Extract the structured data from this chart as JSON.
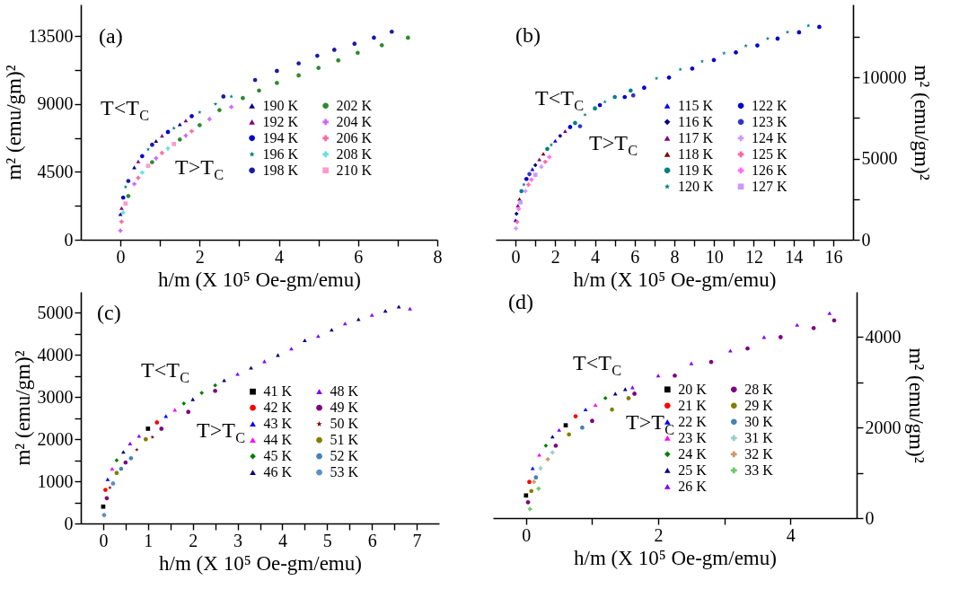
{
  "chart_data": [
    {
      "type": "scatter",
      "xlabel": "h/m (X 10⁵ Oe-gm/emu)",
      "ylabel": "m² (emu/gm)²",
      "annotations": [
        "(a)",
        "T<T$_{C}$",
        "T>T$_{C}$"
      ],
      "legend": "right",
      "xlim": [
        -1,
        8
      ],
      "xticks": [
        0,
        {
          "value": 1,
          "label": null
        },
        2,
        {
          "value": 3,
          "label": null
        },
        4,
        {
          "value": 5,
          "label": null
        },
        6,
        {
          "value": 7,
          "label": null
        },
        8
      ],
      "ylim": [
        0,
        15600
      ],
      "yticks": [
        0,
        {
          "value": 2250,
          "label": null
        },
        4500,
        {
          "value": 6750,
          "label": null
        },
        9000,
        {
          "value": 11250,
          "label": null
        },
        13500
      ],
      "series": [
        {
          "name": "190 K",
          "color": "#00008b",
          "marker": "triangle",
          "x": [
            0.0,
            0.35,
            0.9,
            1.5
          ],
          "values": [
            1700,
            4800,
            6550,
            7650
          ]
        },
        {
          "name": "192 K",
          "color": "#800080",
          "marker": "triangle",
          "x": [
            0.03,
            0.45,
            1.05,
            1.65
          ],
          "values": [
            2100,
            5200,
            6900,
            7900
          ]
        },
        {
          "name": "194 K",
          "color": "#0000cd",
          "marker": "circle",
          "x": [
            0.07,
            0.55,
            1.2,
            1.8
          ],
          "values": [
            2800,
            5550,
            7150,
            8200
          ]
        },
        {
          "name": "196 K",
          "color": "#008080",
          "marker": "star",
          "x": [
            0.13,
            0.7,
            1.35,
            2.0,
            2.4,
            2.8
          ],
          "values": [
            3500,
            6000,
            7400,
            8450,
            9000,
            9500
          ]
        },
        {
          "name": "198 K",
          "color": "#1a1aa6",
          "marker": "circle",
          "x": [
            0.2,
            0.8,
            2.6,
            3.4,
            3.95,
            4.5,
            4.97,
            5.4,
            5.91,
            6.4,
            6.85
          ],
          "values": [
            3900,
            6300,
            9500,
            10600,
            11200,
            11700,
            12200,
            12600,
            13000,
            13400,
            13800
          ]
        },
        {
          "name": "202 K",
          "color": "#2e8b2e",
          "marker": "circle",
          "x": [
            0.2,
            0.8,
            1.5,
            2.0,
            2.5,
            3.09,
            3.5,
            3.95,
            4.5,
            5.0,
            5.5,
            5.99,
            6.6,
            7.26
          ],
          "values": [
            2900,
            5150,
            6650,
            7600,
            8600,
            9400,
            9900,
            10400,
            10900,
            11400,
            11900,
            12400,
            12900,
            13400
          ]
        },
        {
          "name": "204 K",
          "color": "#cc66ff",
          "marker": "cross",
          "x": [
            0.0,
            0.35,
            0.9,
            1.65,
            2.25,
            2.8
          ],
          "values": [
            600,
            3700,
            5400,
            6900,
            8000,
            8800
          ]
        },
        {
          "name": "206 K",
          "color": "#ff6699",
          "marker": "cross",
          "x": [
            0.03,
            0.45,
            1.05,
            1.8
          ],
          "values": [
            1200,
            4100,
            5750,
            7200
          ]
        },
        {
          "name": "208 K",
          "color": "#66e0e0",
          "marker": "cross",
          "x": [
            0.07,
            0.55,
            1.2
          ],
          "values": [
            1800,
            4450,
            6050
          ]
        },
        {
          "name": "210 K",
          "color": "#ff99cc",
          "marker": "square",
          "x": [
            0.13,
            0.7,
            1.35
          ],
          "values": [
            2400,
            4900,
            6350
          ]
        }
      ]
    },
    {
      "type": "scatter",
      "xlabel": "h/m (X 10⁵ Oe-gm/emu)",
      "y2label": "m² (emu/gm)²",
      "annotations": [
        "(b)",
        "T<T$_{C}$",
        "T>T$_{C}$"
      ],
      "legend": "right",
      "xlim": [
        -1,
        17
      ],
      "xticks": [
        0,
        {
          "value": 1,
          "label": null
        },
        2,
        {
          "value": 3,
          "label": null
        },
        4,
        {
          "value": 5,
          "label": null
        },
        6,
        {
          "value": 7,
          "label": null
        },
        8,
        {
          "value": 9,
          "label": null
        },
        10,
        {
          "value": 11,
          "label": null
        },
        12,
        {
          "value": 13,
          "label": null
        },
        14,
        {
          "value": 15,
          "label": null
        },
        16
      ],
      "y2lim": [
        0,
        14500
      ],
      "y2ticks": [
        0,
        {
          "value": 2500,
          "label": null
        },
        5000,
        {
          "value": 7500,
          "label": null
        },
        10000,
        {
          "value": 12500,
          "label": null
        }
      ],
      "series": [
        {
          "name": "115 K",
          "color": "#0000ff",
          "marker": "triangle",
          "axis": "y2",
          "x": [
            0.0,
            0.85,
            2.0
          ],
          "values": [
            1200,
            4350,
            6100
          ]
        },
        {
          "name": "116 K",
          "color": "#000080",
          "marker": "diamond",
          "axis": "y2",
          "x": [
            0.05,
            1.0,
            2.25
          ],
          "values": [
            1600,
            4600,
            6400
          ]
        },
        {
          "name": "117 K",
          "color": "#800080",
          "marker": "triangle",
          "axis": "y2",
          "x": [
            0.12,
            1.2,
            2.5
          ],
          "values": [
            2100,
            4950,
            6700
          ]
        },
        {
          "name": "118 K",
          "color": "#800000",
          "marker": "triangle",
          "axis": "y2",
          "x": [
            0.2,
            1.4
          ],
          "values": [
            2500,
            5300
          ]
        },
        {
          "name": "119 K",
          "color": "#008080",
          "marker": "circle",
          "axis": "y2",
          "x": [
            0.3,
            1.6,
            3.0,
            4.0,
            5.0,
            5.8
          ],
          "values": [
            3000,
            5600,
            7200,
            8100,
            8800,
            9200
          ]
        },
        {
          "name": "120 K",
          "color": "#008080",
          "marker": "star",
          "axis": "y2",
          "x": [
            0.42,
            1.8,
            3.5,
            4.5,
            7.1,
            8.3,
            9.4,
            10.5,
            11.6,
            12.7,
            13.7,
            14.75
          ],
          "values": [
            3400,
            5850,
            7700,
            8500,
            9950,
            10500,
            11000,
            11500,
            11950,
            12400,
            12800,
            13200
          ]
        },
        {
          "name": "122 K",
          "color": "#0000cd",
          "marker": "circle",
          "axis": "y2",
          "x": [
            0.55,
            2.75,
            4.25,
            5.5,
            6.48,
            7.73,
            8.9,
            9.99,
            11.1,
            12.18,
            13.2,
            14.28,
            15.3
          ],
          "values": [
            3750,
            6950,
            8300,
            8800,
            9370,
            10000,
            10550,
            11080,
            11550,
            11980,
            12400,
            12790,
            13120
          ]
        },
        {
          "name": "123 K",
          "color": "#3333cc",
          "marker": "circle",
          "axis": "y2",
          "x": [
            0.7,
            3.25,
            5.93
          ],
          "values": [
            4050,
            7000,
            8900
          ]
        },
        {
          "name": "124 K",
          "color": "#cc99ff",
          "marker": "cross",
          "axis": "y2",
          "x": [
            0.02,
            0.5,
            1.3
          ],
          "values": [
            700,
            3000,
            4500
          ]
        },
        {
          "name": "125 K",
          "color": "#ff6699",
          "marker": "cross",
          "axis": "y2",
          "x": [
            0.08,
            0.65,
            1.5
          ],
          "values": [
            1100,
            3400,
            4800
          ]
        },
        {
          "name": "126 K",
          "color": "#ff66ff",
          "marker": "cross",
          "axis": "y2",
          "x": [
            0.16,
            0.8,
            1.7
          ],
          "values": [
            1900,
            3700,
            5100
          ]
        },
        {
          "name": "127 K",
          "color": "#cc99ff",
          "marker": "square",
          "axis": "y2",
          "x": [
            0.25,
            1.0
          ],
          "values": [
            2300,
            4000
          ]
        }
      ]
    },
    {
      "type": "scatter",
      "xlabel": "h/m (X 10⁵ Oe-gm/emu)",
      "ylabel": "m² (emu/gm)²",
      "annotations": [
        "(c)",
        "T<T$_{C}$",
        "T>T$_{C}$"
      ],
      "legend": "right",
      "xlim": [
        -0.5,
        7.5
      ],
      "xticks": [
        0,
        {
          "value": 0.5,
          "label": null
        },
        1,
        {
          "value": 1.5,
          "label": null
        },
        2,
        {
          "value": 2.5,
          "label": null
        },
        3,
        {
          "value": 3.5,
          "label": null
        },
        4,
        {
          "value": 4.5,
          "label": null
        },
        5,
        {
          "value": 5.5,
          "label": null
        },
        6,
        {
          "value": 6.5,
          "label": null
        },
        7
      ],
      "ylim": [
        0,
        5500
      ],
      "yticks": [
        0,
        {
          "value": 500,
          "label": null
        },
        1000,
        {
          "value": 1500,
          "label": null
        },
        2000,
        {
          "value": 2500,
          "label": null
        },
        3000,
        {
          "value": 3500,
          "label": null
        },
        4000,
        {
          "value": 4500,
          "label": null
        },
        5000
      ],
      "series": [
        {
          "name": "41 K",
          "color": "#000000",
          "marker": "square",
          "x": [
            0.0,
            1.0
          ],
          "values": [
            400,
            2250
          ]
        },
        {
          "name": "42 K",
          "color": "#ff0000",
          "marker": "circle",
          "x": [
            0.05,
            1.2
          ],
          "values": [
            800,
            2400
          ]
        },
        {
          "name": "43 K",
          "color": "#0000ff",
          "marker": "triangle",
          "x": [
            0.1,
            1.4
          ],
          "values": [
            1050,
            2550
          ]
        },
        {
          "name": "44 K",
          "color": "#ff00ff",
          "marker": "triangle",
          "x": [
            0.2,
            1.6
          ],
          "values": [
            1300,
            2700
          ]
        },
        {
          "name": "45 K",
          "color": "#008000",
          "marker": "diamond",
          "x": [
            0.3,
            1.8,
            2.2,
            2.5
          ],
          "values": [
            1500,
            2850,
            3100,
            3280
          ]
        },
        {
          "name": "46 K",
          "color": "#000080",
          "marker": "triangle",
          "x": [
            0.45,
            2.0,
            2.7,
            3.3,
            3.9,
            4.5,
            5.1,
            5.7,
            6.3,
            6.6
          ],
          "values": [
            1700,
            2950,
            3400,
            3700,
            4000,
            4350,
            4600,
            4850,
            5050,
            5150
          ]
        },
        {
          "name": "48 K",
          "color": "#8000ff",
          "marker": "triangle",
          "x": [
            0.6,
            0.8,
            3.0,
            3.6,
            4.2,
            4.8,
            5.4,
            6.0,
            6.85
          ],
          "values": [
            1900,
            2080,
            3550,
            3850,
            4150,
            4450,
            4750,
            4950,
            5100
          ]
        },
        {
          "name": "49 K",
          "color": "#800080",
          "marker": "circle",
          "x": [
            0.08,
            0.5,
            1.3,
            1.9,
            2.5
          ],
          "values": [
            600,
            1450,
            2250,
            2650,
            3150
          ]
        },
        {
          "name": "50 K",
          "color": "#800000",
          "marker": "star",
          "x": [
            0.15,
            0.75,
            1.1
          ],
          "values": [
            850,
            1750,
            2050
          ]
        },
        {
          "name": "51 K",
          "color": "#808000",
          "marker": "circle",
          "x": [
            0.3,
            0.95
          ],
          "values": [
            1200,
            2000
          ]
        },
        {
          "name": "52 K",
          "color": "#4682b4",
          "marker": "circle",
          "x": [
            0.4,
            0.62
          ],
          "values": [
            1300,
            1550
          ]
        },
        {
          "name": "53 K",
          "color": "#5b8fc7",
          "marker": "circle",
          "x": [
            0.02,
            0.22
          ],
          "values": [
            200,
            950
          ]
        }
      ]
    },
    {
      "type": "scatter",
      "xlabel": "h/m (X 10⁵ Oe-gm/emu)",
      "y2label": "m² (emu/gm)²",
      "annotations": [
        "(d)",
        "T<T$_{C}$",
        "T>T$_{C}$"
      ],
      "legend": "right",
      "xlim": [
        -0.5,
        5
      ],
      "xticks": [
        0,
        {
          "value": 1,
          "label": null
        },
        2,
        {
          "value": 3,
          "label": null
        },
        4
      ],
      "y2lim": [
        0,
        5000
      ],
      "y2ticks": [
        0,
        {
          "value": 1000,
          "label": null
        },
        2000,
        {
          "value": 3000,
          "label": null
        },
        4000
      ],
      "series": [
        {
          "name": "20 K",
          "color": "#000000",
          "marker": "square",
          "axis": "y2",
          "x": [
            0.0,
            0.6
          ],
          "values": [
            500,
            2050
          ]
        },
        {
          "name": "21 K",
          "color": "#ff0000",
          "marker": "circle",
          "axis": "y2",
          "x": [
            0.05,
            0.75
          ],
          "values": [
            800,
            2250
          ]
        },
        {
          "name": "22 K",
          "color": "#0000ff",
          "marker": "triangle",
          "axis": "y2",
          "x": [
            0.1,
            0.9
          ],
          "values": [
            1100,
            2400
          ]
        },
        {
          "name": "23 K",
          "color": "#ff00ff",
          "marker": "triangle",
          "axis": "y2",
          "x": [
            0.2,
            1.05
          ],
          "values": [
            1400,
            2500
          ]
        },
        {
          "name": "24 K",
          "color": "#008000",
          "marker": "diamond",
          "axis": "y2",
          "x": [
            0.3,
            1.2
          ],
          "values": [
            1600,
            2650
          ]
        },
        {
          "name": "25 K",
          "color": "#000080",
          "marker": "triangle",
          "axis": "y2",
          "x": [
            0.4,
            1.35,
            1.5
          ],
          "values": [
            1800,
            2750,
            2850
          ]
        },
        {
          "name": "26 K",
          "color": "#8000ff",
          "marker": "triangle",
          "axis": "y2",
          "x": [
            0.5,
            1.61,
            2.0,
            2.5,
            3.09,
            3.6,
            4.1,
            4.59
          ],
          "values": [
            1950,
            2890,
            3150,
            3420,
            3700,
            4000,
            4270,
            4530
          ]
        },
        {
          "name": "28 K",
          "color": "#800080",
          "marker": "circle",
          "axis": "y2",
          "x": [
            0.03,
            0.45,
            1.0,
            1.64,
            2.25,
            2.8,
            3.35,
            3.85,
            4.35,
            4.66
          ],
          "values": [
            350,
            1600,
            2150,
            2750,
            3150,
            3450,
            3750,
            4000,
            4200,
            4370
          ]
        },
        {
          "name": "29 K",
          "color": "#808000",
          "marker": "circle",
          "axis": "y2",
          "x": [
            0.08,
            0.65,
            1.3,
            1.55
          ],
          "values": [
            600,
            1850,
            2400,
            2650
          ]
        },
        {
          "name": "30 K",
          "color": "#4682b4",
          "marker": "circle",
          "axis": "y2",
          "x": [
            0.15,
            0.85
          ],
          "values": [
            900,
            2000
          ]
        },
        {
          "name": "31 K",
          "color": "#99cccc",
          "marker": "cross",
          "axis": "y2",
          "x": [
            0.22,
            0.4
          ],
          "values": [
            1100,
            1450
          ]
        },
        {
          "name": "32 K",
          "color": "#cc9966",
          "marker": "cross",
          "axis": "y2",
          "x": [
            0.12,
            0.33
          ],
          "values": [
            800,
            1300
          ]
        },
        {
          "name": "33 K",
          "color": "#66cc66",
          "marker": "cross",
          "axis": "y2",
          "x": [
            0.06,
            0.19
          ],
          "values": [
            200,
            650
          ]
        }
      ]
    }
  ]
}
